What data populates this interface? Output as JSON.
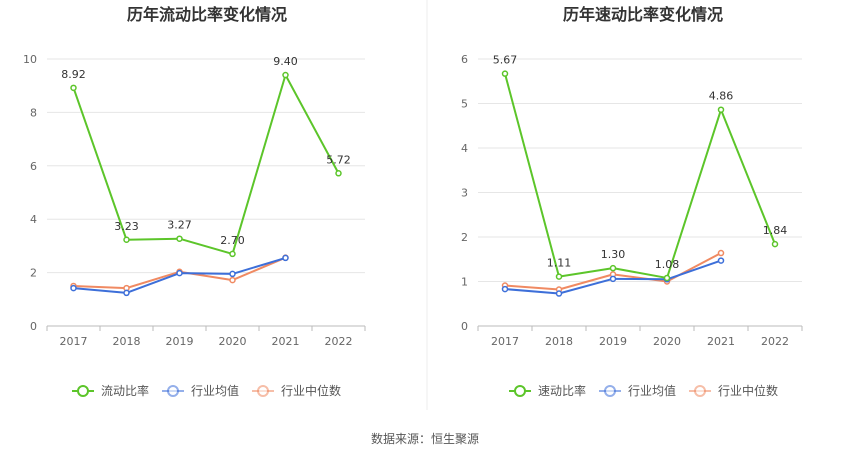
{
  "source_text": "数据来源：恒生聚源",
  "chart_data": [
    {
      "type": "line",
      "title": "历年流动比率变化情况",
      "categories": [
        "2017",
        "2018",
        "2019",
        "2020",
        "2021",
        "2022"
      ],
      "ylim": [
        0,
        10
      ],
      "yticks": [
        0,
        2,
        4,
        6,
        8,
        10
      ],
      "grid": true,
      "legend_position": "bottom",
      "series": [
        {
          "name": "流动比率",
          "color": "#5cc52a",
          "values": [
            8.92,
            3.23,
            3.27,
            2.7,
            9.4,
            5.72
          ],
          "labels": [
            "8.92",
            "3.23",
            "3.27",
            "2.70",
            "9.40",
            "5.72"
          ]
        },
        {
          "name": "行业均值",
          "color": "#3d6fd9",
          "values": [
            1.42,
            1.24,
            1.98,
            1.95,
            2.55,
            null
          ]
        },
        {
          "name": "行业中位数",
          "color": "#f08a62",
          "values": [
            1.5,
            1.42,
            2.03,
            1.72,
            2.56,
            null
          ]
        }
      ]
    },
    {
      "type": "line",
      "title": "历年速动比率变化情况",
      "categories": [
        "2017",
        "2018",
        "2019",
        "2020",
        "2021",
        "2022"
      ],
      "ylim": [
        0,
        6
      ],
      "yticks": [
        0,
        1,
        2,
        3,
        4,
        5,
        6
      ],
      "grid": true,
      "legend_position": "bottom",
      "series": [
        {
          "name": "速动比率",
          "color": "#5cc52a",
          "values": [
            5.67,
            1.11,
            1.3,
            1.08,
            4.86,
            1.84
          ],
          "labels": [
            "5.67",
            "1.11",
            "1.30",
            "1.08",
            "4.86",
            "1.84"
          ]
        },
        {
          "name": "行业均值",
          "color": "#3d6fd9",
          "values": [
            0.83,
            0.73,
            1.06,
            1.05,
            1.47,
            null
          ]
        },
        {
          "name": "行业中位数",
          "color": "#f08a62",
          "values": [
            0.91,
            0.82,
            1.16,
            1.0,
            1.64,
            null
          ]
        }
      ]
    }
  ]
}
